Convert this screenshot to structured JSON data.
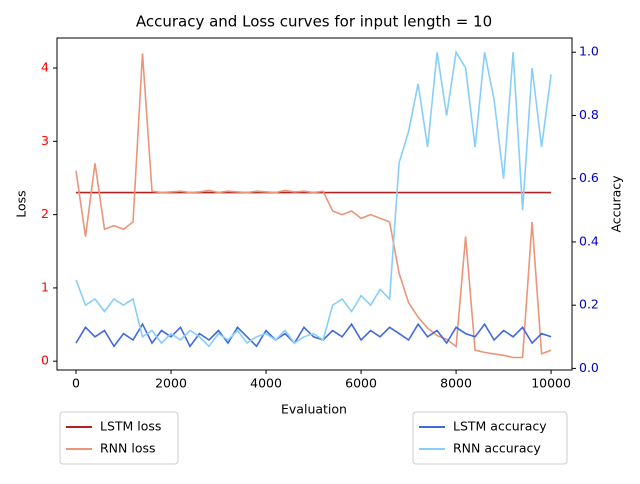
{
  "chart_data": {
    "type": "line",
    "title": "Accuracy and Loss curves for input length = 10",
    "x_label": "Evaluation",
    "y_label": "Loss",
    "y2_label": "Accuracy",
    "x": [
      0,
      200,
      400,
      600,
      800,
      1000,
      1200,
      1400,
      1600,
      1800,
      2000,
      2200,
      2400,
      2600,
      2800,
      3000,
      3200,
      3400,
      3600,
      3800,
      4000,
      4200,
      4400,
      4600,
      4800,
      5000,
      5200,
      5400,
      5600,
      5800,
      6000,
      6200,
      6400,
      6600,
      6800,
      7000,
      7200,
      7400,
      7600,
      7800,
      8000,
      8200,
      8400,
      8600,
      8800,
      9000,
      9200,
      9400,
      9600,
      9800,
      10000
    ],
    "xlim": [
      -400,
      10440
    ],
    "xticks": [
      0,
      2000,
      4000,
      6000,
      8000,
      10000
    ],
    "ylim": [
      -0.12,
      4.41
    ],
    "yticks": [
      0,
      1,
      2,
      3,
      4
    ],
    "y2lim": [
      -0.005,
      1.045
    ],
    "y2ticks": [
      {
        "value": 0,
        "label": "0.0"
      },
      {
        "value": 0.2,
        "label": "0.2"
      },
      {
        "value": 0.4,
        "label": "0.4"
      },
      {
        "value": 0.6,
        "label": "0.6"
      },
      {
        "value": 0.8,
        "label": "0.8"
      },
      {
        "value": 1,
        "label": "1.0"
      }
    ],
    "y_tick_color": "#ff0000",
    "y2_tick_color": "#0000cc",
    "series": [
      {
        "name": "LSTM loss",
        "color": "#b22222",
        "axis": "y",
        "values": [
          2.3,
          2.3,
          2.3,
          2.3,
          2.3,
          2.3,
          2.3,
          2.3,
          2.3,
          2.3,
          2.3,
          2.3,
          2.3,
          2.3,
          2.3,
          2.3,
          2.3,
          2.3,
          2.3,
          2.3,
          2.3,
          2.3,
          2.3,
          2.3,
          2.3,
          2.3,
          2.3,
          2.3,
          2.3,
          2.3,
          2.3,
          2.3,
          2.3,
          2.3,
          2.3,
          2.3,
          2.3,
          2.3,
          2.3,
          2.3,
          2.3,
          2.3,
          2.3,
          2.3,
          2.3,
          2.3,
          2.3,
          2.3,
          2.3,
          2.3,
          2.3
        ]
      },
      {
        "name": "RNN loss",
        "color": "#e9967a",
        "axis": "y",
        "values": [
          2.6,
          1.7,
          2.7,
          1.8,
          1.85,
          1.8,
          1.9,
          4.2,
          2.32,
          2.3,
          2.31,
          2.32,
          2.3,
          2.31,
          2.33,
          2.3,
          2.32,
          2.31,
          2.3,
          2.32,
          2.31,
          2.3,
          2.33,
          2.31,
          2.32,
          2.3,
          2.32,
          2.05,
          2.0,
          2.05,
          1.95,
          2.0,
          1.95,
          1.9,
          1.2,
          0.8,
          0.6,
          0.45,
          0.35,
          0.3,
          0.2,
          1.7,
          0.15,
          0.12,
          0.1,
          0.08,
          0.05,
          0.05,
          1.9,
          0.1,
          0.15
        ]
      },
      {
        "name": "LSTM accuracy",
        "color": "#4169e1",
        "axis": "y2",
        "values": [
          0.08,
          0.13,
          0.1,
          0.12,
          0.07,
          0.11,
          0.09,
          0.14,
          0.08,
          0.12,
          0.1,
          0.13,
          0.07,
          0.11,
          0.09,
          0.12,
          0.08,
          0.13,
          0.1,
          0.07,
          0.12,
          0.09,
          0.11,
          0.08,
          0.13,
          0.1,
          0.09,
          0.12,
          0.1,
          0.14,
          0.09,
          0.12,
          0.1,
          0.13,
          0.11,
          0.09,
          0.14,
          0.1,
          0.12,
          0.08,
          0.13,
          0.11,
          0.1,
          0.14,
          0.09,
          0.12,
          0.1,
          0.13,
          0.08,
          0.11,
          0.1
        ]
      },
      {
        "name": "RNN accuracy",
        "color": "#87cefa",
        "axis": "y2",
        "values": [
          0.28,
          0.2,
          0.22,
          0.18,
          0.22,
          0.2,
          0.22,
          0.1,
          0.12,
          0.08,
          0.11,
          0.09,
          0.12,
          0.1,
          0.07,
          0.11,
          0.09,
          0.12,
          0.08,
          0.1,
          0.11,
          0.09,
          0.12,
          0.08,
          0.1,
          0.11,
          0.09,
          0.2,
          0.22,
          0.18,
          0.23,
          0.2,
          0.25,
          0.22,
          0.65,
          0.75,
          0.9,
          0.7,
          1.0,
          0.8,
          1.0,
          0.95,
          0.7,
          1.0,
          0.85,
          0.6,
          1.0,
          0.5,
          0.95,
          0.7,
          0.93
        ]
      }
    ]
  }
}
